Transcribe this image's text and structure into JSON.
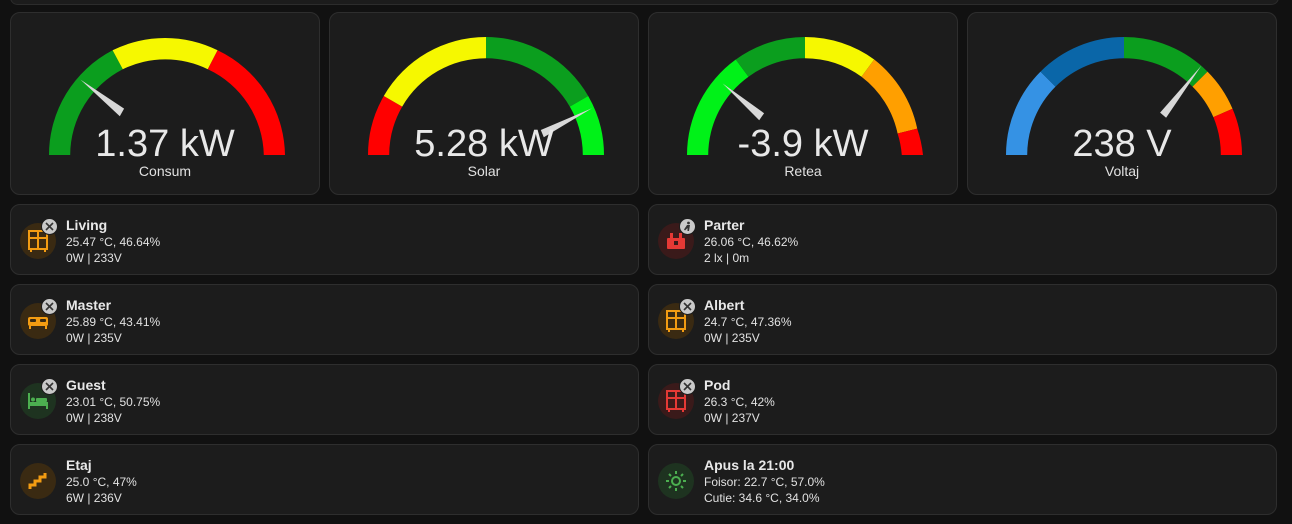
{
  "colors": {
    "background": "#111111",
    "card": "#1c1c1c",
    "green": "#0b9e1e",
    "bright_green": "#00f218",
    "yellow": "#f6f800",
    "orange": "#ff9f00",
    "red": "#ff0000",
    "blue": "#3592e4",
    "dark_blue": "#0a66a8",
    "needle": "#d8d8d8"
  },
  "gauges": [
    {
      "value": "1.37 kW",
      "label": "Consum",
      "needle_fraction": 0.21
    },
    {
      "value": "5.28 kW",
      "label": "Solar",
      "needle_fraction": 0.92
    },
    {
      "value": "-3.9 kW",
      "label": "Retea",
      "needle_fraction": 0.25
    },
    {
      "value": "238 V",
      "label": "Voltaj",
      "needle_fraction": 0.8
    }
  ],
  "rooms": [
    {
      "name": "Living",
      "line1": "25.47 °C, 46.64%",
      "line2": "0W | 233V",
      "icon": "wardrobe-icon",
      "badge": "fan-badge-icon"
    },
    {
      "name": "Parter",
      "line1": "26.06 °C, 46.62%",
      "line2": "2 lx | 0m",
      "icon": "alarm-panel-icon",
      "badge": "motion-badge-icon"
    },
    {
      "name": "Master",
      "line1": "25.89 °C, 43.41%",
      "line2": "0W | 235V",
      "icon": "bed-icon",
      "badge": "fan-badge-icon"
    },
    {
      "name": "Albert",
      "line1": "24.7 °C, 47.36%",
      "line2": "0W | 235V",
      "icon": "wardrobe-icon",
      "badge": "fan-badge-icon"
    },
    {
      "name": "Guest",
      "line1": "23.01 °C, 50.75%",
      "line2": "0W | 238V",
      "icon": "guest-bed-icon",
      "badge": "fan-badge-icon"
    },
    {
      "name": "Pod",
      "line1": "26.3 °C, 42%",
      "line2": "0W | 237V",
      "icon": "wardrobe-icon",
      "badge": "fan-badge-icon"
    },
    {
      "name": "Etaj",
      "line1": "25.0 °C, 47%",
      "line2": "6W | 236V",
      "icon": "stairs-icon",
      "badge": ""
    },
    {
      "name": "Apus la 21:00",
      "line1": "Foisor: 22.7 °C, 57.0%",
      "line2": "Cutie: 34.6 °C, 34.0%",
      "icon": "sun-icon",
      "badge": ""
    }
  ]
}
